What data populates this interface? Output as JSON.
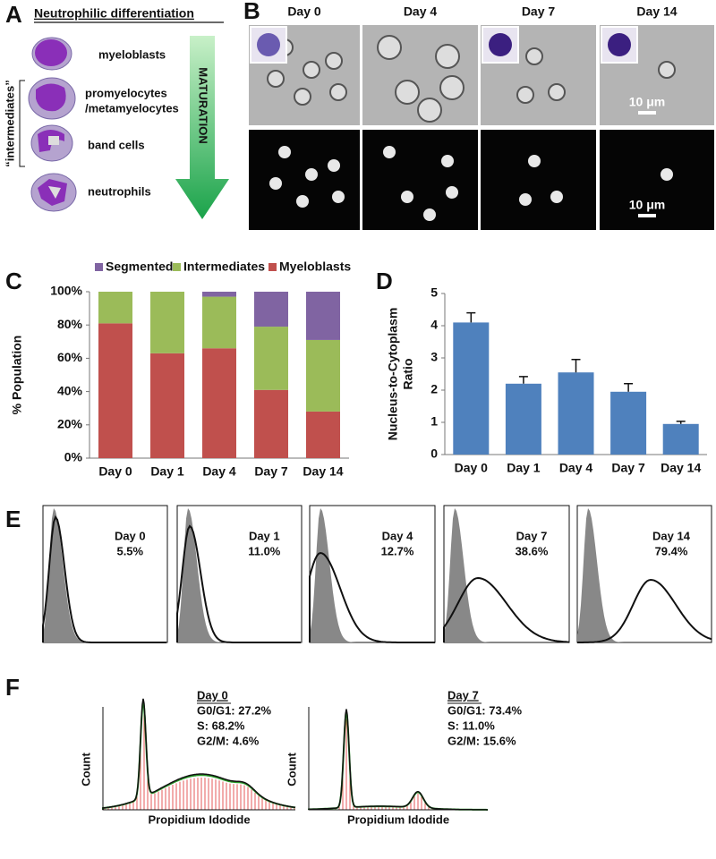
{
  "panel_a": {
    "letter": "A",
    "title": "Neutrophilic differentiation",
    "stages": [
      "myeloblasts",
      "promyelocytes",
      "/metamyelocytes",
      "band cells",
      "neutrophils"
    ],
    "group_label": "“intermediates”",
    "arrow_label": "MATURATION"
  },
  "panel_b": {
    "letter": "B",
    "days": [
      "Day 0",
      "Day 4",
      "Day 7",
      "Day 14"
    ],
    "scale_bar": "10 μm"
  },
  "chart_data": [
    {
      "type": "stacked-bar",
      "letter": "C",
      "ylabel": "% Population",
      "categories": [
        "Day 0",
        "Day 1",
        "Day 4",
        "Day 7",
        "Day 14"
      ],
      "series": [
        {
          "name": "Segmented",
          "color": "#8064a2",
          "values": [
            0,
            0,
            3,
            21,
            29
          ]
        },
        {
          "name": "Intermediates",
          "color": "#9bbb59",
          "values": [
            19,
            37,
            31,
            38,
            43
          ]
        },
        {
          "name": "Myeloblasts",
          "color": "#c0504d",
          "values": [
            81,
            63,
            66,
            41,
            28
          ]
        }
      ],
      "ylim": [
        0,
        100
      ],
      "yticks": [
        {
          "value": 0,
          "label": "0%"
        },
        {
          "value": 20,
          "label": "20%"
        },
        {
          "value": 40,
          "label": "40%"
        },
        {
          "value": 60,
          "label": "60%"
        },
        {
          "value": 80,
          "label": "80%"
        },
        {
          "value": 100,
          "label": "100%"
        }
      ]
    },
    {
      "type": "bar",
      "letter": "D",
      "ylabel": [
        "Nucleus-to-Cytoplasm",
        "Ratio"
      ],
      "categories": [
        "Day 0",
        "Day 1",
        "Day 4",
        "Day 7",
        "Day 14"
      ],
      "values": [
        4.1,
        2.2,
        2.55,
        1.95,
        0.95
      ],
      "errors": [
        0.3,
        0.22,
        0.4,
        0.25,
        0.08
      ],
      "color": "#4f81bd",
      "ylim": [
        0,
        5
      ],
      "yticks": [
        0,
        1,
        2,
        3,
        4,
        5
      ]
    }
  ],
  "panel_e": {
    "letter": "E",
    "panels": [
      {
        "day": "Day 0",
        "percent": "5.5%"
      },
      {
        "day": "Day 1",
        "percent": "11.0%"
      },
      {
        "day": "Day 4",
        "percent": "12.7%"
      },
      {
        "day": "Day 7",
        "percent": "38.6%"
      },
      {
        "day": "Day 14",
        "percent": "79.4%"
      }
    ]
  },
  "panel_f": {
    "letter": "F",
    "xlabel": "Propidium Idodide",
    "ylabel": "Count",
    "panels": [
      {
        "day": "Day 0",
        "lines": [
          "G0/G1: 27.2%",
          "S: 68.2%",
          "G2/M: 4.6%"
        ]
      },
      {
        "day": "Day 7",
        "lines": [
          "G0/G1: 73.4%",
          "S: 11.0%",
          "G2/M: 15.6%"
        ]
      }
    ]
  }
}
